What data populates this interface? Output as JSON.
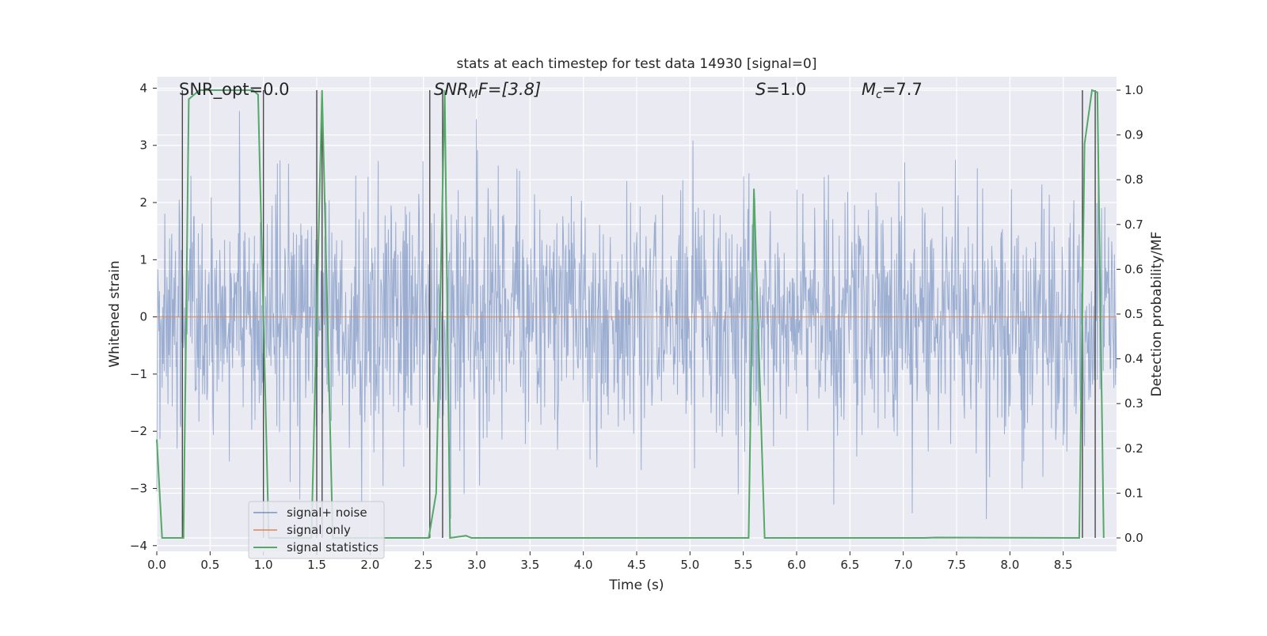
{
  "chart_data": {
    "type": "line",
    "title": "stats at each timestep for test data 14930 [signal=0]",
    "xlabel": "Time (s)",
    "ylabel": "Whitened strain",
    "ylabel_right": "Detection probability/MF",
    "xlim": [
      0.0,
      9.0
    ],
    "ylim": [
      -4.1,
      4.2
    ],
    "ylim_right": [
      -0.03,
      1.03
    ],
    "x_ticks": [
      0.0,
      0.5,
      1.0,
      1.5,
      2.0,
      2.5,
      3.0,
      3.5,
      4.0,
      4.5,
      5.0,
      5.5,
      6.0,
      6.5,
      7.0,
      7.5,
      8.0,
      8.5
    ],
    "x_tick_labels": [
      "0.0",
      "0.5",
      "1.0",
      "1.5",
      "2.0",
      "2.5",
      "3.0",
      "3.5",
      "4.0",
      "4.5",
      "5.0",
      "5.5",
      "6.0",
      "6.5",
      "7.0",
      "7.5",
      "8.0",
      "8.5"
    ],
    "y_ticks": [
      4,
      3,
      2,
      1,
      0,
      -1,
      -2,
      -3,
      -4
    ],
    "y_tick_labels": [
      "4",
      "3",
      "2",
      "1",
      "0",
      "−1",
      "−2",
      "−3",
      "−4"
    ],
    "y_ticks_right": [
      1.0,
      0.9,
      0.8,
      0.7,
      0.6,
      0.5,
      0.4,
      0.3,
      0.2,
      0.1,
      0.0
    ],
    "y_tick_labels_right": [
      "1.0",
      "0.9",
      "0.8",
      "0.7",
      "0.6",
      "0.5",
      "0.4",
      "0.3",
      "0.2",
      "0.1",
      "0.0"
    ],
    "grid": true,
    "legend_position": "lower-left",
    "noise_envelope": {
      "description": "whitened strain noise roughly within ±2, spikes to about ±3.5",
      "typical_amplitude": 2.0,
      "spike_max": 3.6,
      "spike_min": -3.6
    },
    "series": [
      {
        "name": "signal+ noise",
        "color": "#4c72b0",
        "axis": "left",
        "kind": "noise"
      },
      {
        "name": "signal only",
        "color": "#dd8452",
        "axis": "left",
        "x": [
          0.0,
          9.0
        ],
        "y": [
          0.0,
          0.0
        ]
      },
      {
        "name": "signal statistics",
        "color": "#55a868",
        "axis": "right",
        "x": [
          0.0,
          0.05,
          0.25,
          0.3,
          0.4,
          0.9,
          0.95,
          1.05,
          1.45,
          1.55,
          1.65,
          2.55,
          2.62,
          2.7,
          2.75,
          2.9,
          2.95,
          3.0,
          5.55,
          5.6,
          5.7,
          7.2,
          7.3,
          8.65,
          8.7,
          8.77,
          8.82,
          8.88
        ],
        "y": [
          0.22,
          0.0,
          0.0,
          0.98,
          1.0,
          1.0,
          0.99,
          0.0,
          0.0,
          1.0,
          0.0,
          0.0,
          0.1,
          1.0,
          0.0,
          0.005,
          0.0,
          0.0,
          0.0,
          0.78,
          0.0,
          0.0,
          0.001,
          0.0,
          0.88,
          1.0,
          0.995,
          0.0
        ]
      }
    ],
    "vertical_markers": [
      {
        "x": 0.24,
        "ymin": 0.0,
        "ymax": 1.0
      },
      {
        "x": 1.0,
        "ymin": 0.0,
        "ymax": 1.0
      },
      {
        "x": 1.5,
        "ymin": 0.0,
        "ymax": 1.0
      },
      {
        "x": 1.55,
        "ymin": 0.0,
        "ymax": 1.0
      },
      {
        "x": 2.56,
        "ymin": 0.0,
        "ymax": 1.0
      },
      {
        "x": 2.68,
        "ymin": 0.0,
        "ymax": 1.0
      },
      {
        "x": 8.68,
        "ymin": 0.0,
        "ymax": 1.0
      },
      {
        "x": 8.8,
        "ymin": 0.0,
        "ymax": 1.0
      }
    ],
    "annotations": [
      {
        "id": "snr-opt",
        "text": "SNR_opt=0.0",
        "x": 0.2
      },
      {
        "id": "snr-mf",
        "text_main": "SNR",
        "text_sub": "M",
        "text_rest": "F=[3.8]",
        "x": 2.6
      },
      {
        "id": "s-value",
        "text_main": "S",
        "text_rest": "=1.0",
        "x": 5.6
      },
      {
        "id": "mc-value",
        "text_main": "M",
        "text_sub": "c",
        "text_rest": "=7.7",
        "x": 6.6
      }
    ]
  }
}
